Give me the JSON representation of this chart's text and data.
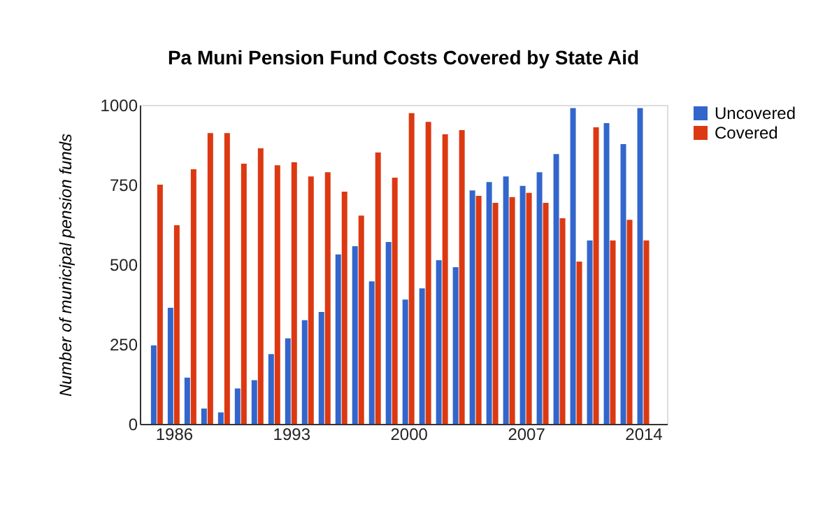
{
  "chart_data": {
    "type": "bar",
    "title": "Pa Muni Pension Fund Costs Covered by State Aid",
    "ylabel": "Number of municipal pension funds",
    "x": [
      1985,
      1986,
      1987,
      1988,
      1989,
      1990,
      1991,
      1992,
      1993,
      1994,
      1995,
      1996,
      1997,
      1998,
      1999,
      2000,
      2001,
      2002,
      2003,
      2004,
      2005,
      2006,
      2007,
      2008,
      2009,
      2010,
      2011,
      2012,
      2013,
      2014
    ],
    "series": [
      {
        "name": "Uncovered",
        "color": "#3366cc",
        "values": [
          246,
          364,
          145,
          48,
          36,
          111,
          137,
          219,
          268,
          325,
          351,
          531,
          557,
          447,
          570,
          390,
          425,
          513,
          491,
          732,
          758,
          776,
          746,
          789,
          846,
          990,
          575,
          943,
          877,
          990
        ]
      },
      {
        "name": "Covered",
        "color": "#dc3912",
        "values": [
          750,
          623,
          798,
          912,
          912,
          816,
          864,
          811,
          820,
          776,
          789,
          728,
          653,
          851,
          772,
          974,
          947,
          908,
          921,
          715,
          693,
          711,
          724,
          693,
          645,
          509,
          930,
          575,
          640,
          575
        ]
      }
    ],
    "xlim": [
      1984.4,
      2015
    ],
    "xticks": [
      1986,
      1993,
      2000,
      2007,
      2014
    ],
    "ylim": [
      0,
      1000
    ],
    "yticks": [
      0,
      250,
      500,
      750,
      1000
    ],
    "grid": false,
    "legend": "top right"
  }
}
